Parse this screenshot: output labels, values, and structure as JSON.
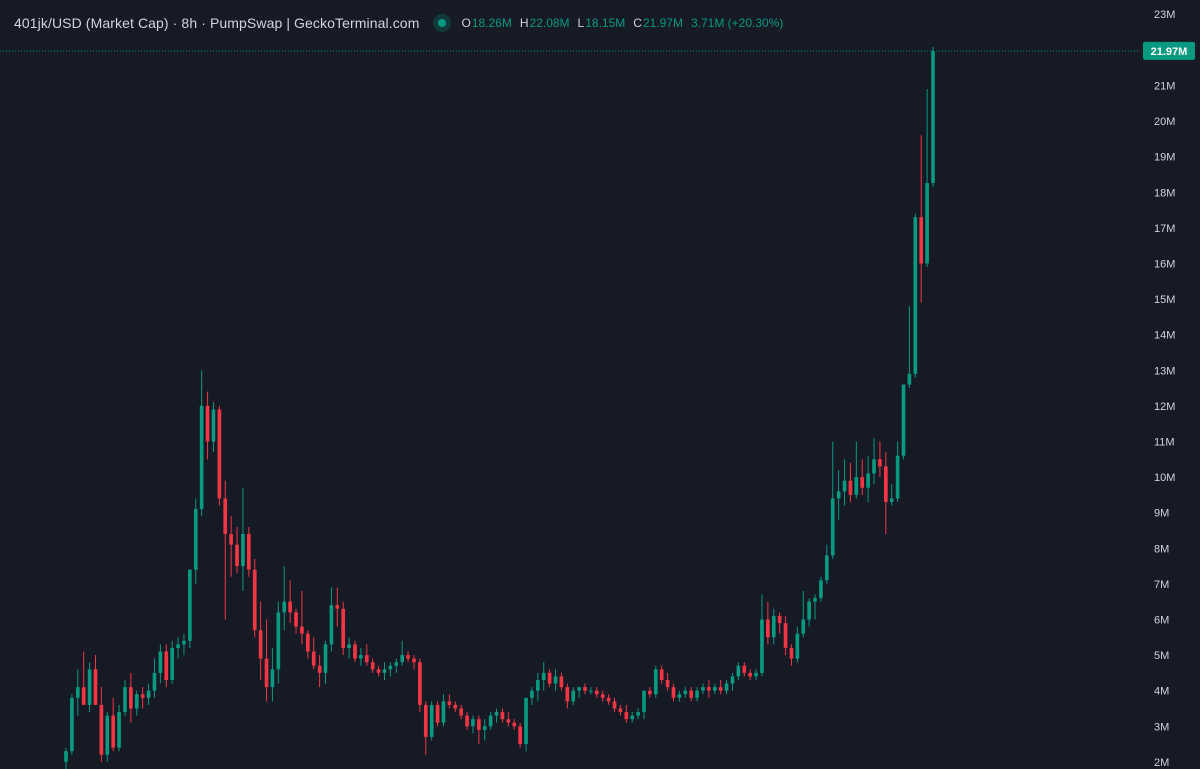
{
  "header": {
    "title": "401jk/USD (Market Cap) · 8h · PumpSwap | GeckoTerminal.com",
    "o_label": "O",
    "o_value": "18.26M",
    "h_label": "H",
    "h_value": "22.08M",
    "l_label": "L",
    "l_value": "18.15M",
    "c_label": "C",
    "c_value": "21.97M",
    "change": "3.71M (+20.30%)"
  },
  "colors": {
    "background": "#161a25",
    "up": "#089981",
    "down": "#f23645",
    "text": "#d1d4dc",
    "axis_text": "#d1d4dc"
  },
  "chart_data": {
    "type": "candlestick",
    "y_unit": "M",
    "ylim": [
      1.8,
      23.4
    ],
    "y_ticks": [
      "23M",
      "22M",
      "21M",
      "20M",
      "19M",
      "18M",
      "17M",
      "16M",
      "15M",
      "14M",
      "13M",
      "12M",
      "11M",
      "10M",
      "9M",
      "8M",
      "7M",
      "6M",
      "5M",
      "4M",
      "3M",
      "2M"
    ],
    "y_tick_values": [
      23,
      22,
      21,
      20,
      19,
      18,
      17,
      16,
      15,
      14,
      13,
      12,
      11,
      10,
      9,
      8,
      7,
      6,
      5,
      4,
      3,
      2
    ],
    "last_price": 21.97,
    "last_price_label": "21.97M",
    "grid": false,
    "candles": [
      [
        2.0,
        2.4,
        1.8,
        2.3
      ],
      [
        2.3,
        3.9,
        2.2,
        3.8
      ],
      [
        3.8,
        4.6,
        3.3,
        4.1
      ],
      [
        4.1,
        5.1,
        3.7,
        3.6
      ],
      [
        3.6,
        4.8,
        3.4,
        4.6
      ],
      [
        4.6,
        5.0,
        3.6,
        3.6
      ],
      [
        3.6,
        4.1,
        2.0,
        2.2
      ],
      [
        2.2,
        3.4,
        2.0,
        3.3
      ],
      [
        3.3,
        3.8,
        2.3,
        2.4
      ],
      [
        2.4,
        3.6,
        2.3,
        3.4
      ],
      [
        3.4,
        4.3,
        3.3,
        4.1
      ],
      [
        4.1,
        4.5,
        3.1,
        3.5
      ],
      [
        3.5,
        4.0,
        3.3,
        3.9
      ],
      [
        3.9,
        4.1,
        3.5,
        3.8
      ],
      [
        3.8,
        4.2,
        3.6,
        4.0
      ],
      [
        4.0,
        4.9,
        3.8,
        4.5
      ],
      [
        4.5,
        5.3,
        4.2,
        5.1
      ],
      [
        5.1,
        5.3,
        4.1,
        4.3
      ],
      [
        4.3,
        5.4,
        4.2,
        5.2
      ],
      [
        5.2,
        5.5,
        4.9,
        5.3
      ],
      [
        5.3,
        5.6,
        5.0,
        5.4
      ],
      [
        5.4,
        7.4,
        5.2,
        7.4
      ],
      [
        7.4,
        9.4,
        7.0,
        9.1
      ],
      [
        9.1,
        13.0,
        8.9,
        12.0
      ],
      [
        12.0,
        12.4,
        10.5,
        11.0
      ],
      [
        11.0,
        12.1,
        10.7,
        11.9
      ],
      [
        11.9,
        12.0,
        9.2,
        9.4
      ],
      [
        9.4,
        9.9,
        6.0,
        8.4
      ],
      [
        8.4,
        8.9,
        7.2,
        8.1
      ],
      [
        8.1,
        8.6,
        7.3,
        7.5
      ],
      [
        7.5,
        9.7,
        6.8,
        8.4
      ],
      [
        8.4,
        8.6,
        7.2,
        7.4
      ],
      [
        7.4,
        7.7,
        5.5,
        5.7
      ],
      [
        5.7,
        6.5,
        4.3,
        4.9
      ],
      [
        4.9,
        6.0,
        3.7,
        4.1
      ],
      [
        4.1,
        5.2,
        3.7,
        4.6
      ],
      [
        4.6,
        6.5,
        4.2,
        6.2
      ],
      [
        6.2,
        7.5,
        5.7,
        6.5
      ],
      [
        6.5,
        7.1,
        5.9,
        6.2
      ],
      [
        6.2,
        6.3,
        5.6,
        5.8
      ],
      [
        5.8,
        6.8,
        5.3,
        5.6
      ],
      [
        5.6,
        5.7,
        4.9,
        5.1
      ],
      [
        5.1,
        5.5,
        4.6,
        4.7
      ],
      [
        4.7,
        5.0,
        4.1,
        4.5
      ],
      [
        4.5,
        5.4,
        4.2,
        5.3
      ],
      [
        5.3,
        6.9,
        5.1,
        6.4
      ],
      [
        6.4,
        6.9,
        5.8,
        6.3
      ],
      [
        6.3,
        6.5,
        5.0,
        5.2
      ],
      [
        5.2,
        5.5,
        4.9,
        5.3
      ],
      [
        5.3,
        5.4,
        4.8,
        4.9
      ],
      [
        4.9,
        5.2,
        4.7,
        5.0
      ],
      [
        5.0,
        5.3,
        4.7,
        4.8
      ],
      [
        4.8,
        4.9,
        4.5,
        4.6
      ],
      [
        4.6,
        4.7,
        4.4,
        4.5
      ],
      [
        4.5,
        4.8,
        4.3,
        4.6
      ],
      [
        4.6,
        4.8,
        4.4,
        4.7
      ],
      [
        4.7,
        4.9,
        4.5,
        4.8
      ],
      [
        4.8,
        5.4,
        4.7,
        5.0
      ],
      [
        5.0,
        5.1,
        4.8,
        4.9
      ],
      [
        4.9,
        5.0,
        4.6,
        4.8
      ],
      [
        4.8,
        4.9,
        3.4,
        3.6
      ],
      [
        3.6,
        3.7,
        2.2,
        2.7
      ],
      [
        2.7,
        3.7,
        2.6,
        3.6
      ],
      [
        3.6,
        3.7,
        3.0,
        3.1
      ],
      [
        3.1,
        3.9,
        3.0,
        3.7
      ],
      [
        3.7,
        3.9,
        3.5,
        3.6
      ],
      [
        3.6,
        3.7,
        3.4,
        3.5
      ],
      [
        3.5,
        3.6,
        3.2,
        3.3
      ],
      [
        3.3,
        3.4,
        2.9,
        3.0
      ],
      [
        3.0,
        3.3,
        2.8,
        3.2
      ],
      [
        3.2,
        3.3,
        2.5,
        2.9
      ],
      [
        2.9,
        3.2,
        2.6,
        3.0
      ],
      [
        3.0,
        3.4,
        2.9,
        3.3
      ],
      [
        3.3,
        3.5,
        3.1,
        3.4
      ],
      [
        3.4,
        3.5,
        3.1,
        3.2
      ],
      [
        3.2,
        3.4,
        3.0,
        3.1
      ],
      [
        3.1,
        3.2,
        2.9,
        3.0
      ],
      [
        3.0,
        3.1,
        2.4,
        2.5
      ],
      [
        2.5,
        3.8,
        2.3,
        3.8
      ],
      [
        3.8,
        4.1,
        3.6,
        4.0
      ],
      [
        4.0,
        4.5,
        3.7,
        4.3
      ],
      [
        4.3,
        4.8,
        4.0,
        4.5
      ],
      [
        4.5,
        4.6,
        4.1,
        4.2
      ],
      [
        4.2,
        4.6,
        4.0,
        4.4
      ],
      [
        4.4,
        4.5,
        4.0,
        4.1
      ],
      [
        4.1,
        4.2,
        3.5,
        3.7
      ],
      [
        3.7,
        4.1,
        3.6,
        4.0
      ],
      [
        4.0,
        4.1,
        3.8,
        4.1
      ],
      [
        4.1,
        4.2,
        3.9,
        4.0
      ],
      [
        4.0,
        4.1,
        3.9,
        4.0
      ],
      [
        4.0,
        4.1,
        3.8,
        3.9
      ],
      [
        3.9,
        4.0,
        3.7,
        3.8
      ],
      [
        3.8,
        3.9,
        3.6,
        3.7
      ],
      [
        3.7,
        3.8,
        3.4,
        3.5
      ],
      [
        3.5,
        3.6,
        3.3,
        3.4
      ],
      [
        3.4,
        3.6,
        3.1,
        3.2
      ],
      [
        3.2,
        3.4,
        3.1,
        3.3
      ],
      [
        3.3,
        3.5,
        3.2,
        3.4
      ],
      [
        3.4,
        4.0,
        3.2,
        4.0
      ],
      [
        4.0,
        4.1,
        3.8,
        3.9
      ],
      [
        3.9,
        4.7,
        3.8,
        4.6
      ],
      [
        4.6,
        4.7,
        4.2,
        4.3
      ],
      [
        4.3,
        4.5,
        4.0,
        4.1
      ],
      [
        4.1,
        4.2,
        3.7,
        3.8
      ],
      [
        3.8,
        4.0,
        3.7,
        3.9
      ],
      [
        3.9,
        4.1,
        3.8,
        4.0
      ],
      [
        4.0,
        4.1,
        3.7,
        3.8
      ],
      [
        3.8,
        4.1,
        3.7,
        4.0
      ],
      [
        4.0,
        4.2,
        3.9,
        4.1
      ],
      [
        4.1,
        4.3,
        3.8,
        4.0
      ],
      [
        4.0,
        4.2,
        3.9,
        4.1
      ],
      [
        4.1,
        4.3,
        3.9,
        4.0
      ],
      [
        4.0,
        4.3,
        3.9,
        4.2
      ],
      [
        4.2,
        4.5,
        4.0,
        4.4
      ],
      [
        4.4,
        4.8,
        4.3,
        4.7
      ],
      [
        4.7,
        4.8,
        4.4,
        4.5
      ],
      [
        4.5,
        4.6,
        4.3,
        4.4
      ],
      [
        4.4,
        4.6,
        4.3,
        4.5
      ],
      [
        4.5,
        6.7,
        4.4,
        6.0
      ],
      [
        6.0,
        6.5,
        5.3,
        5.5
      ],
      [
        5.5,
        6.3,
        5.3,
        6.1
      ],
      [
        6.1,
        6.2,
        5.6,
        5.9
      ],
      [
        5.9,
        6.1,
        5.0,
        5.2
      ],
      [
        5.2,
        5.3,
        4.7,
        4.9
      ],
      [
        4.9,
        5.8,
        4.8,
        5.6
      ],
      [
        5.6,
        6.8,
        5.5,
        6.0
      ],
      [
        6.0,
        6.6,
        5.8,
        6.5
      ],
      [
        6.5,
        6.7,
        6.0,
        6.6
      ],
      [
        6.6,
        7.2,
        6.5,
        7.1
      ],
      [
        7.1,
        8.1,
        7.0,
        7.8
      ],
      [
        7.8,
        11.0,
        7.7,
        9.4
      ],
      [
        9.4,
        10.2,
        8.8,
        9.6
      ],
      [
        9.6,
        10.5,
        9.2,
        9.9
      ],
      [
        9.9,
        10.4,
        9.3,
        9.5
      ],
      [
        9.5,
        11.0,
        9.4,
        10.0
      ],
      [
        10.0,
        10.5,
        9.5,
        9.7
      ],
      [
        9.7,
        10.6,
        9.3,
        10.1
      ],
      [
        10.1,
        11.1,
        9.8,
        10.5
      ],
      [
        10.5,
        11.0,
        10.0,
        10.3
      ],
      [
        10.3,
        10.7,
        8.4,
        9.3
      ],
      [
        9.3,
        9.8,
        9.2,
        9.4
      ],
      [
        9.4,
        11.0,
        9.3,
        10.6
      ],
      [
        10.6,
        12.6,
        10.5,
        12.6
      ],
      [
        12.6,
        14.8,
        12.5,
        12.9
      ],
      [
        12.9,
        17.4,
        12.8,
        17.3
      ],
      [
        17.3,
        19.6,
        14.9,
        16.0
      ],
      [
        16.0,
        20.9,
        15.9,
        18.26
      ],
      [
        18.26,
        22.08,
        18.15,
        21.97
      ]
    ]
  }
}
